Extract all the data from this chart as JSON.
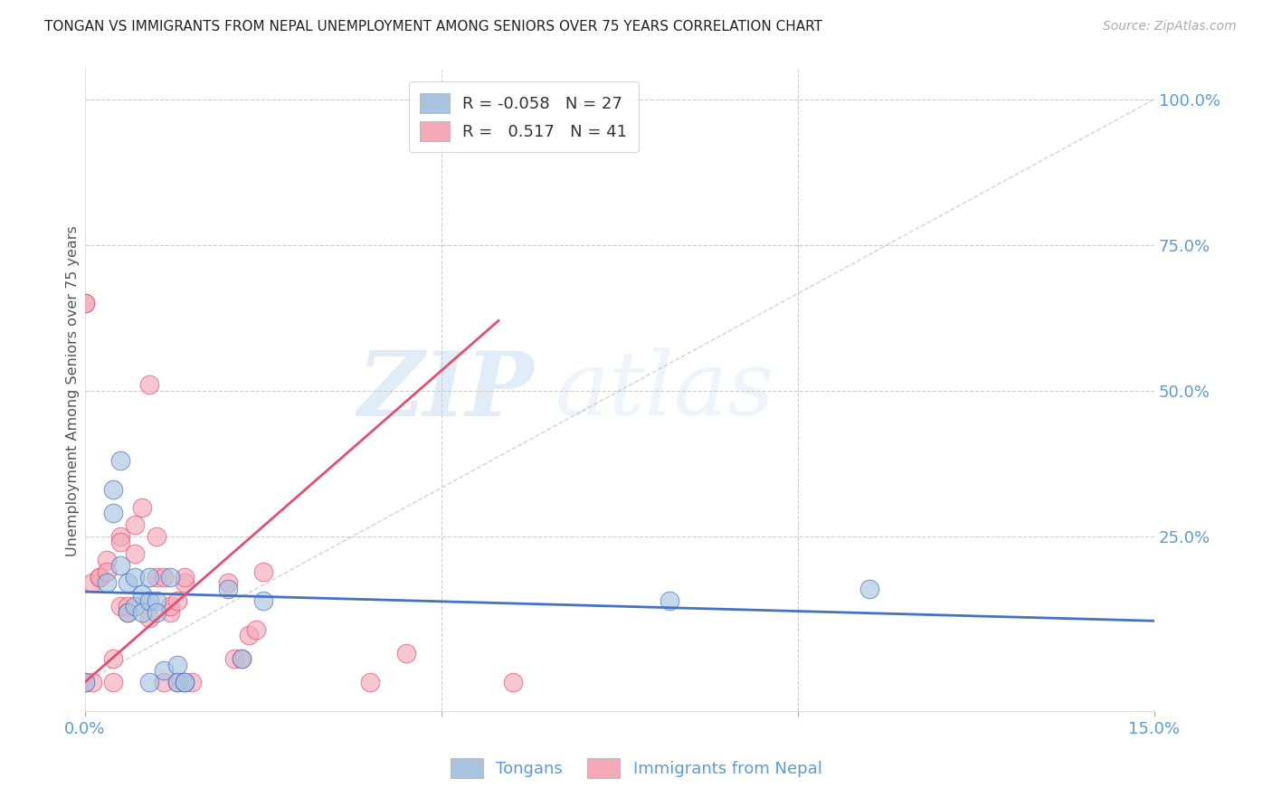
{
  "title": "TONGAN VS IMMIGRANTS FROM NEPAL UNEMPLOYMENT AMONG SENIORS OVER 75 YEARS CORRELATION CHART",
  "source": "Source: ZipAtlas.com",
  "ylabel": "Unemployment Among Seniors over 75 years",
  "xmin": 0.0,
  "xmax": 0.15,
  "ymin": -0.05,
  "ymax": 1.05,
  "watermark_zip": "ZIP",
  "watermark_atlas": "atlas",
  "color_blue": "#a8c4e0",
  "color_pink": "#f4a8b8",
  "line_color_blue": "#4472c4",
  "line_color_pink": "#e05070",
  "diag_color": "#c8c8c8",
  "label_color": "#5b9bd5",
  "blue_trend_x": [
    0.0,
    0.15
  ],
  "blue_trend_y": [
    0.155,
    0.105
  ],
  "pink_trend_x": [
    0.0,
    0.058
  ],
  "pink_trend_y": [
    0.0,
    0.62
  ],
  "tongans_x": [
    0.0,
    0.003,
    0.004,
    0.004,
    0.005,
    0.005,
    0.006,
    0.006,
    0.007,
    0.007,
    0.008,
    0.008,
    0.009,
    0.009,
    0.009,
    0.01,
    0.01,
    0.011,
    0.012,
    0.013,
    0.013,
    0.014,
    0.014,
    0.02,
    0.022,
    0.025,
    0.082,
    0.11
  ],
  "tongans_y": [
    0.0,
    0.17,
    0.29,
    0.33,
    0.2,
    0.38,
    0.17,
    0.12,
    0.18,
    0.13,
    0.15,
    0.12,
    0.18,
    0.14,
    0.0,
    0.14,
    0.12,
    0.02,
    0.18,
    0.03,
    0.0,
    0.0,
    0.0,
    0.16,
    0.04,
    0.14,
    0.14,
    0.16
  ],
  "nepal_x": [
    0.0,
    0.0,
    0.0,
    0.001,
    0.001,
    0.002,
    0.002,
    0.003,
    0.003,
    0.004,
    0.004,
    0.005,
    0.005,
    0.005,
    0.006,
    0.006,
    0.007,
    0.007,
    0.008,
    0.009,
    0.009,
    0.01,
    0.01,
    0.011,
    0.011,
    0.012,
    0.012,
    0.013,
    0.013,
    0.014,
    0.014,
    0.015,
    0.02,
    0.021,
    0.022,
    0.023,
    0.024,
    0.025,
    0.04,
    0.045,
    0.06
  ],
  "nepal_y": [
    0.0,
    0.65,
    0.65,
    0.0,
    0.17,
    0.18,
    0.18,
    0.21,
    0.19,
    0.0,
    0.04,
    0.25,
    0.24,
    0.13,
    0.13,
    0.12,
    0.22,
    0.27,
    0.3,
    0.51,
    0.11,
    0.25,
    0.18,
    0.0,
    0.18,
    0.12,
    0.13,
    0.14,
    0.0,
    0.17,
    0.18,
    0.0,
    0.17,
    0.04,
    0.04,
    0.08,
    0.09,
    0.19,
    0.0,
    0.05,
    0.0
  ]
}
